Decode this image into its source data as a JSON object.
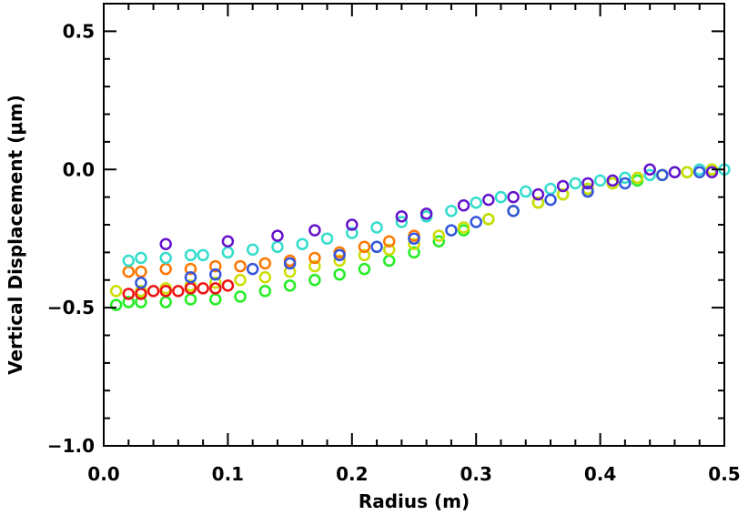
{
  "chart_data": {
    "type": "scatter",
    "title": "",
    "xlabel": "Radius (m)",
    "ylabel": "Vertical Displacement (μm)",
    "xlim": [
      0.0,
      0.5
    ],
    "ylim": [
      -1.0,
      0.6
    ],
    "xticks": [
      0.0,
      0.1,
      0.2,
      0.3,
      0.4,
      0.5
    ],
    "xtick_labels": [
      "0.0",
      "0.1",
      "0.2",
      "0.3",
      "0.4",
      "0.5"
    ],
    "yticks": [
      -1.0,
      -0.5,
      0.0,
      0.5
    ],
    "ytick_labels": [
      "−1.0",
      "−0.5",
      "0.0",
      "0.5"
    ],
    "grid": false,
    "series": [
      {
        "name": "green",
        "color": "#22ee22",
        "x": [
          0.01,
          0.02,
          0.03,
          0.05,
          0.07,
          0.09,
          0.11,
          0.13,
          0.15,
          0.17,
          0.19,
          0.21,
          0.23,
          0.25,
          0.27,
          0.29,
          0.31,
          0.33,
          0.35,
          0.37,
          0.39,
          0.41,
          0.43,
          0.45,
          0.47,
          0.49
        ],
        "y": [
          -0.49,
          -0.48,
          -0.48,
          -0.48,
          -0.47,
          -0.47,
          -0.46,
          -0.44,
          -0.42,
          -0.4,
          -0.38,
          -0.36,
          -0.33,
          -0.3,
          -0.26,
          -0.22,
          -0.18,
          -0.15,
          -0.12,
          -0.09,
          -0.07,
          -0.05,
          -0.04,
          -0.02,
          -0.01,
          0.0
        ]
      },
      {
        "name": "yellow",
        "color": "#ccdd00",
        "x": [
          0.01,
          0.03,
          0.05,
          0.07,
          0.09,
          0.11,
          0.13,
          0.15,
          0.17,
          0.19,
          0.21,
          0.23,
          0.25,
          0.27,
          0.29,
          0.31,
          0.33,
          0.35,
          0.37,
          0.39,
          0.41,
          0.43,
          0.45,
          0.47,
          0.49
        ],
        "y": [
          -0.44,
          -0.44,
          -0.43,
          -0.42,
          -0.41,
          -0.4,
          -0.39,
          -0.37,
          -0.35,
          -0.33,
          -0.31,
          -0.29,
          -0.27,
          -0.24,
          -0.21,
          -0.18,
          -0.15,
          -0.12,
          -0.09,
          -0.07,
          -0.05,
          -0.03,
          -0.02,
          -0.01,
          0.0
        ]
      },
      {
        "name": "red",
        "color": "#ee1111",
        "x": [
          0.02,
          0.03,
          0.04,
          0.05,
          0.06,
          0.07,
          0.08,
          0.09,
          0.1
        ],
        "y": [
          -0.45,
          -0.45,
          -0.44,
          -0.44,
          -0.44,
          -0.43,
          -0.43,
          -0.43,
          -0.42
        ]
      },
      {
        "name": "orange",
        "color": "#ff7700",
        "x": [
          0.02,
          0.03,
          0.05,
          0.07,
          0.09,
          0.11,
          0.13,
          0.15,
          0.17,
          0.19,
          0.21,
          0.23,
          0.25
        ],
        "y": [
          -0.37,
          -0.37,
          -0.36,
          -0.36,
          -0.35,
          -0.35,
          -0.34,
          -0.33,
          -0.32,
          -0.3,
          -0.28,
          -0.26,
          -0.24
        ]
      },
      {
        "name": "cyan",
        "color": "#33ddcc",
        "x": [
          0.02,
          0.03,
          0.05,
          0.07,
          0.08,
          0.1,
          0.12,
          0.14,
          0.16,
          0.18,
          0.2,
          0.22,
          0.24,
          0.26,
          0.28,
          0.3,
          0.32,
          0.34,
          0.36,
          0.38,
          0.4,
          0.42,
          0.44,
          0.46,
          0.48,
          0.5
        ],
        "y": [
          -0.33,
          -0.32,
          -0.32,
          -0.31,
          -0.31,
          -0.3,
          -0.29,
          -0.28,
          -0.27,
          -0.25,
          -0.23,
          -0.21,
          -0.19,
          -0.17,
          -0.15,
          -0.12,
          -0.1,
          -0.08,
          -0.07,
          -0.05,
          -0.04,
          -0.03,
          -0.02,
          -0.01,
          0.0,
          0.0
        ]
      },
      {
        "name": "blue",
        "color": "#3355dd",
        "x": [
          0.03,
          0.07,
          0.09,
          0.12,
          0.15,
          0.19,
          0.22,
          0.25,
          0.28,
          0.3,
          0.33,
          0.36,
          0.39,
          0.42,
          0.45,
          0.48
        ],
        "y": [
          -0.41,
          -0.39,
          -0.38,
          -0.36,
          -0.34,
          -0.31,
          -0.28,
          -0.25,
          -0.22,
          -0.19,
          -0.15,
          -0.11,
          -0.08,
          -0.05,
          -0.02,
          -0.01
        ]
      },
      {
        "name": "purple",
        "color": "#6611cc",
        "x": [
          0.05,
          0.1,
          0.14,
          0.17,
          0.2,
          0.24,
          0.26,
          0.29,
          0.31,
          0.33,
          0.35,
          0.37,
          0.39,
          0.41,
          0.44,
          0.46,
          0.49
        ],
        "y": [
          -0.27,
          -0.26,
          -0.24,
          -0.22,
          -0.2,
          -0.17,
          -0.16,
          -0.13,
          -0.11,
          -0.1,
          -0.09,
          -0.06,
          -0.05,
          -0.04,
          0.0,
          -0.01,
          -0.01
        ]
      }
    ]
  }
}
